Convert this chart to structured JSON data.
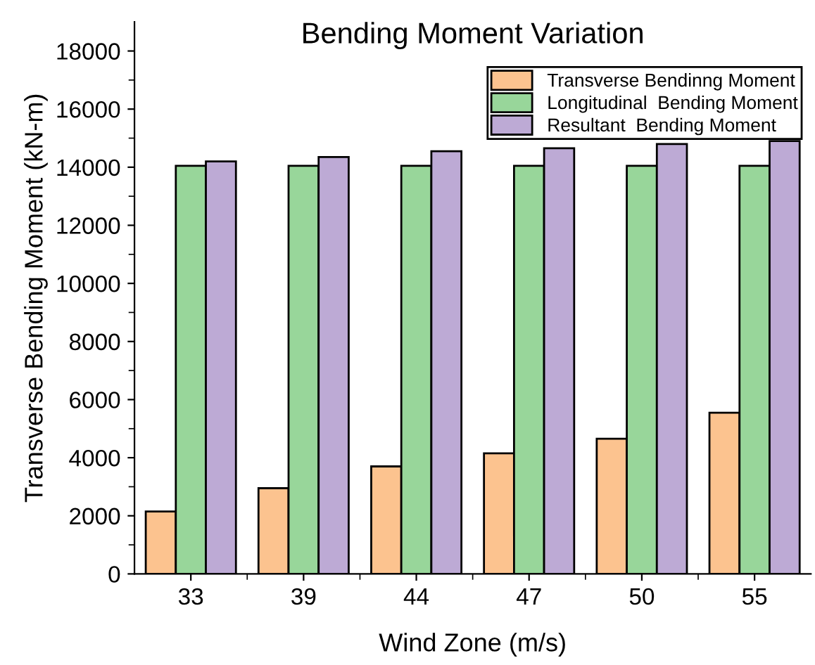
{
  "chart_data": {
    "type": "bar",
    "title": "Bending Moment Variation",
    "xlabel": "Wind Zone (m/s)",
    "ylabel": "Transverse Bending Moment (kN-m)",
    "categories": [
      "33",
      "39",
      "44",
      "47",
      "50",
      "55"
    ],
    "series": [
      {
        "name": "Transverse Bendinng Moment",
        "color": "#fcc38f",
        "values": [
          2150,
          2950,
          3700,
          4150,
          4650,
          5550
        ]
      },
      {
        "name": "Longitudinal  Bending Moment",
        "color": "#98d69a",
        "values": [
          14050,
          14050,
          14050,
          14050,
          14050,
          14050
        ]
      },
      {
        "name": "Resultant  Bending Moment",
        "color": "#bdaad5",
        "values": [
          14200,
          14350,
          14550,
          14650,
          14800,
          14900
        ]
      }
    ],
    "ylim": [
      0,
      19000
    ],
    "yticks": [
      0,
      {
        "value": 1000,
        "label": null
      },
      2000,
      {
        "value": 3000,
        "label": null
      },
      4000,
      {
        "value": 5000,
        "label": null
      },
      6000,
      {
        "value": 7000,
        "label": null
      },
      8000,
      {
        "value": 9000,
        "label": null
      },
      10000,
      {
        "value": 11000,
        "label": null
      },
      12000,
      {
        "value": 13000,
        "label": null
      },
      14000,
      {
        "value": 15000,
        "label": null
      },
      16000,
      {
        "value": 17000,
        "label": null
      },
      18000
    ],
    "grid": false,
    "legend": "top right"
  }
}
